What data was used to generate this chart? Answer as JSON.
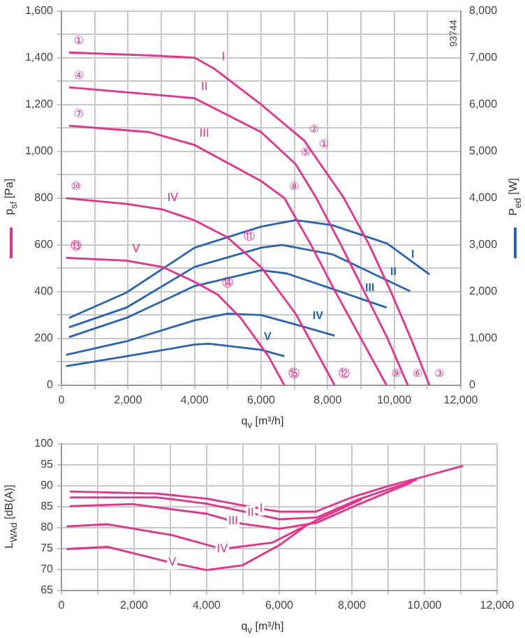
{
  "chart_data": [
    {
      "type": "line",
      "xlabel": "q$_{v}$ [m³/h]",
      "ylabel": "p$_{sf}$ [Pa]",
      "y2label": "P$_{ed}$ [W]",
      "grid": true,
      "legend": false,
      "marker": "none",
      "line_style": "solid",
      "xlim": [
        0,
        12000
      ],
      "xticks": [
        0,
        {
          "value": 1000,
          "label": null
        },
        {
          "value": 2000,
          "label": "2,000"
        },
        {
          "value": 3000,
          "label": null
        },
        {
          "value": 4000,
          "label": "4,000"
        },
        {
          "value": 5000,
          "label": null
        },
        {
          "value": 6000,
          "label": "6,000"
        },
        {
          "value": 7000,
          "label": null
        },
        {
          "value": 8000,
          "label": "8,000"
        },
        {
          "value": 9000,
          "label": null
        },
        {
          "value": 10000,
          "label": "10,000"
        },
        {
          "value": 11000,
          "label": null
        },
        {
          "value": 12000,
          "label": "12,000"
        }
      ],
      "ylim": [
        0,
        1600
      ],
      "yticks": [
        0,
        {
          "value": 100,
          "label": null
        },
        200,
        {
          "value": 300,
          "label": null
        },
        400,
        {
          "value": 500,
          "label": null
        },
        600,
        {
          "value": 700,
          "label": null
        },
        800,
        {
          "value": 900,
          "label": null
        },
        {
          "value": 1000,
          "label": "1,000"
        },
        {
          "value": 1100,
          "label": null
        },
        {
          "value": 1200,
          "label": "1,200"
        },
        {
          "value": 1300,
          "label": null
        },
        {
          "value": 1400,
          "label": "1,400"
        },
        {
          "value": 1500,
          "label": null
        },
        {
          "value": 1600,
          "label": "1,600"
        }
      ],
      "y2lim": [
        0,
        8000
      ],
      "y2ticks": [
        0,
        {
          "value": 1000,
          "label": "1,000"
        },
        {
          "value": 2000,
          "label": "2,000"
        },
        {
          "value": 3000,
          "label": "3,000"
        },
        {
          "value": 4000,
          "label": "4,000"
        },
        {
          "value": 5000,
          "label": "5,000"
        },
        {
          "value": 6000,
          "label": "6,000"
        },
        {
          "value": 7000,
          "label": "7,000"
        },
        {
          "value": 8000,
          "label": "8,000"
        }
      ],
      "series": [
        {
          "color": "#e8308a",
          "x": [
            230,
            2640,
            4000,
            4570,
            6000,
            7300,
            7600,
            8490,
            9250,
            9900,
            10500,
            11060
          ],
          "values": [
            1422,
            1410,
            1400,
            1355,
            1200,
            1045,
            983,
            800,
            600,
            400,
            200,
            0
          ]
        },
        {
          "color": "#e8308a",
          "x": [
            230,
            4000,
            6000,
            7040,
            7660,
            8400,
            9100,
            9800,
            10410
          ],
          "values": [
            1273,
            1227,
            1082,
            945,
            800,
            600,
            400,
            200,
            0
          ]
        },
        {
          "color": "#e8308a",
          "x": [
            230,
            2640,
            4000,
            6000,
            6700,
            7500,
            8230,
            9000,
            9770
          ],
          "values": [
            1109,
            1082,
            1027,
            873,
            800,
            600,
            400,
            200,
            0
          ]
        },
        {
          "color": "#e8308a",
          "x": [
            140,
            1950,
            3050,
            4000,
            4980,
            5340,
            6000,
            7040,
            7600,
            8210
          ],
          "values": [
            800,
            775,
            751,
            705,
            633,
            588,
            505,
            305,
            160,
            0
          ]
        },
        {
          "color": "#e8308a",
          "x": [
            140,
            1950,
            3050,
            4000,
            4700,
            5390,
            6220,
            6700
          ],
          "values": [
            545,
            533,
            505,
            442,
            387,
            287,
            124,
            0
          ]
        },
        {
          "name": "I",
          "color": "#2a64b0",
          "axis": "y2",
          "x": [
            230,
            1950,
            4000,
            6000,
            7040,
            8140,
            9790,
            11060
          ],
          "values": [
            1440,
            1980,
            2940,
            3390,
            3530,
            3420,
            3030,
            2370
          ]
        },
        {
          "name": "II",
          "color": "#2a64b0",
          "axis": "y2",
          "x": [
            230,
            1950,
            4000,
            6000,
            6630,
            8140,
            10480
          ],
          "values": [
            1240,
            1660,
            2530,
            2940,
            3000,
            2800,
            2010
          ]
        },
        {
          "name": "III",
          "color": "#2a64b0",
          "axis": "y2",
          "x": [
            230,
            1950,
            4000,
            6000,
            6770,
            8140,
            9770
          ],
          "values": [
            1030,
            1440,
            2120,
            2460,
            2390,
            2060,
            1660
          ]
        },
        {
          "name": "IV",
          "color": "#2a64b0",
          "axis": "y2",
          "x": [
            140,
            1950,
            4000,
            4980,
            6000,
            7040,
            8210
          ],
          "values": [
            650,
            940,
            1390,
            1530,
            1500,
            1300,
            1060
          ]
        },
        {
          "name": "V",
          "color": "#2a64b0",
          "axis": "y2",
          "x": [
            140,
            1950,
            4000,
            4430,
            6000,
            6700
          ],
          "values": [
            410,
            620,
            870,
            890,
            760,
            620
          ]
        }
      ],
      "annotations": [
        "93744",
        {
          "text": "①",
          "x": 230,
          "y": 1422
        },
        {
          "text": "④",
          "x": 230,
          "y": 1273
        },
        {
          "text": "⑦",
          "x": 230,
          "y": 1109
        },
        {
          "text": "⑩",
          "x": 140,
          "y": 800
        },
        {
          "text": "⑬",
          "x": 140,
          "y": 545
        },
        {
          "text": "②",
          "x": 7300,
          "y": 1045
        },
        {
          "text": "①",
          "x": 7600,
          "y": 983
        },
        {
          "text": "⑤",
          "x": 7040,
          "y": 945
        },
        {
          "text": "⑧",
          "x": 6700,
          "y": 800
        },
        {
          "text": "⑪",
          "x": 5340,
          "y": 588
        },
        {
          "text": "⑭",
          "x": 4700,
          "y": 387
        },
        {
          "text": "⑮",
          "x": 6700,
          "y": 0
        },
        {
          "text": "⑫",
          "x": 8210,
          "y": 0
        },
        {
          "text": "⑨",
          "x": 9770,
          "y": 0
        },
        {
          "text": "⑥",
          "x": 10410,
          "y": 0
        },
        {
          "text": "③",
          "x": 11060,
          "y": 0
        },
        {
          "text": "I",
          "x": 4570,
          "y": 1355
        },
        {
          "text": "II",
          "x": 4000,
          "y": 1227
        },
        {
          "text": "III",
          "x": 4000,
          "y": 1027
        },
        {
          "text": "IV",
          "x": 3050,
          "y": 751
        },
        {
          "text": "V",
          "x": 1950,
          "y": 533
        }
      ]
    },
    {
      "type": "line",
      "xlabel": "q$_{v}$ [m³/h]",
      "ylabel": "L$_{WAd}$ [dB(A)]",
      "grid": true,
      "legend": false,
      "marker": "none",
      "line_style": "solid",
      "xlim": [
        0,
        12000
      ],
      "xticks": [
        0,
        {
          "value": 1000,
          "label": null
        },
        {
          "value": 2000,
          "label": "2,000"
        },
        {
          "value": 3000,
          "label": null
        },
        {
          "value": 4000,
          "label": "4,000"
        },
        {
          "value": 5000,
          "label": null
        },
        {
          "value": 6000,
          "label": "6,000"
        },
        {
          "value": 7000,
          "label": null
        },
        {
          "value": 8000,
          "label": "8,000"
        },
        {
          "value": 9000,
          "label": null
        },
        {
          "value": 10000,
          "label": "10,000"
        },
        {
          "value": 11000,
          "label": null
        },
        {
          "value": 12000,
          "label": "12,000"
        }
      ],
      "ylim": [
        65,
        100
      ],
      "yticks": [
        65,
        70,
        75,
        80,
        85,
        90,
        95,
        100
      ],
      "series": [
        {
          "color": "#e8308a",
          "x": [
            230,
            2640,
            4000,
            5500,
            6000,
            7000,
            8000,
            9000,
            10000,
            11060
          ],
          "values": [
            88.6,
            88.1,
            86.9,
            84.5,
            83.8,
            83.8,
            87.2,
            89.9,
            92.2,
            94.7
          ]
        },
        {
          "color": "#e8308a",
          "x": [
            230,
            2640,
            4000,
            5210,
            6000,
            7040,
            8140,
            9790
          ],
          "values": [
            87.2,
            87.2,
            85.7,
            83.5,
            82.0,
            82.4,
            86.6,
            91.4
          ]
        },
        {
          "color": "#e8308a",
          "x": [
            230,
            1950,
            4000,
            4730,
            4980,
            6000,
            7040,
            8140,
            9650
          ],
          "values": [
            85.1,
            85.6,
            83.3,
            81.5,
            80.9,
            79.7,
            81.2,
            85.4,
            90.8
          ]
        },
        {
          "color": "#e8308a",
          "x": [
            140,
            1270,
            3050,
            4430,
            5800,
            7040,
            8280
          ],
          "values": [
            80.3,
            80.8,
            78.2,
            74.9,
            76.4,
            81.8,
            86.8
          ]
        },
        {
          "color": "#e8308a",
          "x": [
            140,
            1270,
            3050,
            4000,
            4980,
            6000,
            6700
          ],
          "values": [
            74.9,
            75.4,
            71.6,
            69.9,
            71.0,
            75.8,
            80.2
          ]
        }
      ],
      "annotations": [
        {
          "text": "I",
          "x": 5500,
          "y": 84.5
        },
        {
          "text": "II",
          "x": 5210,
          "y": 83.5
        },
        {
          "text": "III",
          "x": 4730,
          "y": 81.5
        },
        {
          "text": "IV",
          "x": 4430,
          "y": 74.9
        },
        {
          "text": "V",
          "x": 3050,
          "y": 71.6
        }
      ]
    }
  ]
}
